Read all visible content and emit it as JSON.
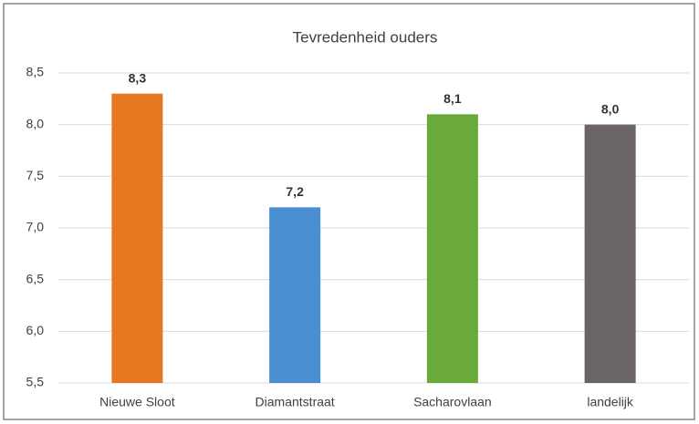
{
  "chart_data": {
    "type": "bar",
    "title": "Tevredenheid ouders",
    "categories": [
      "Nieuwe Sloot",
      "Diamantstraat",
      "Sacharovlaan",
      "landelijk"
    ],
    "values": [
      8.3,
      7.2,
      8.1,
      8.0
    ],
    "value_labels": [
      "8,3",
      "7,2",
      "8,1",
      "8,0"
    ],
    "colors": [
      "#e87722",
      "#4a90d0",
      "#6aaa3a",
      "#6b6464"
    ],
    "ylim": [
      5.5,
      8.5
    ],
    "yticks": [
      {
        "value": 5.5,
        "label": "5,5"
      },
      {
        "value": 6.0,
        "label": "6,0"
      },
      {
        "value": 6.5,
        "label": "6,5"
      },
      {
        "value": 7.0,
        "label": "7,0"
      },
      {
        "value": 7.5,
        "label": "7,5"
      },
      {
        "value": 8.0,
        "label": "8,0"
      },
      {
        "value": 8.5,
        "label": "8,5"
      }
    ],
    "grid": true
  }
}
